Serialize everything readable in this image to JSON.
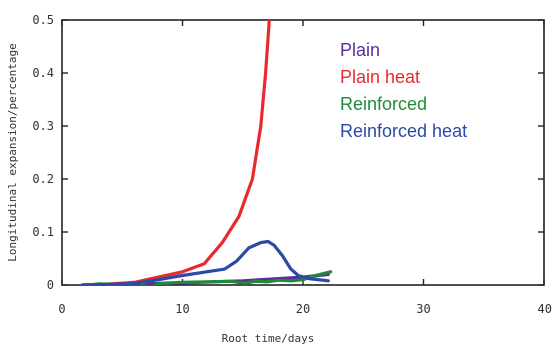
{
  "chart_data": {
    "type": "line",
    "xlabel": "Root time/days",
    "ylabel": "Longitudinal expansion/percentage",
    "xlim": [
      0,
      40
    ],
    "ylim": [
      0,
      0.5
    ],
    "x_ticks": [
      0,
      10,
      20,
      30,
      40
    ],
    "y_ticks": [
      0,
      0.1,
      0.2,
      0.3,
      0.4,
      0.5
    ],
    "x_tick_labels": [
      "0",
      "10",
      "20",
      "30",
      "40"
    ],
    "y_tick_labels": [
      "0",
      "0.1",
      "0.2",
      "0.3",
      "0.4",
      "0.5"
    ],
    "grid": false,
    "legend_position": "top-right",
    "series": [
      {
        "name": "Plain",
        "color": "#5a2d9c",
        "points": [
          [
            1.7,
            0
          ],
          [
            5,
            0.001
          ],
          [
            10,
            0.004
          ],
          [
            15,
            0.008
          ],
          [
            18,
            0.012
          ],
          [
            20,
            0.015
          ],
          [
            22.1,
            0.02
          ]
        ]
      },
      {
        "name": "Plain heat",
        "color": "#e8292d",
        "points": [
          [
            1.7,
            0
          ],
          [
            4,
            0.002
          ],
          [
            6,
            0.005
          ],
          [
            8,
            0.015
          ],
          [
            10,
            0.025
          ],
          [
            11.8,
            0.04
          ],
          [
            13.3,
            0.08
          ],
          [
            14.7,
            0.13
          ],
          [
            15.8,
            0.2
          ],
          [
            16.5,
            0.3
          ],
          [
            16.9,
            0.4
          ],
          [
            17.2,
            0.5
          ]
        ]
      },
      {
        "name": "Reinforced",
        "color": "#1f8a3a",
        "points": [
          [
            1.7,
            -0.002
          ],
          [
            3,
            0.002
          ],
          [
            5,
            0.001
          ],
          [
            6.5,
            0.005
          ],
          [
            7.2,
            -0.008
          ],
          [
            8,
            0.003
          ],
          [
            10,
            0.005
          ],
          [
            12,
            0.006
          ],
          [
            14,
            0.007
          ],
          [
            15.2,
            0.003
          ],
          [
            16,
            0.007
          ],
          [
            17,
            0.006
          ],
          [
            18,
            0.009
          ],
          [
            19,
            0.008
          ],
          [
            20,
            0.01
          ],
          [
            21,
            0.018
          ],
          [
            22.3,
            0.025
          ]
        ]
      },
      {
        "name": "Reinforced heat",
        "color": "#2a4aa8",
        "points": [
          [
            1.7,
            0
          ],
          [
            4,
            0.001
          ],
          [
            6,
            0.003
          ],
          [
            8,
            0.01
          ],
          [
            10,
            0.018
          ],
          [
            12,
            0.025
          ],
          [
            13.5,
            0.03
          ],
          [
            14.5,
            0.045
          ],
          [
            15.5,
            0.07
          ],
          [
            16.5,
            0.08
          ],
          [
            17.1,
            0.082
          ],
          [
            17.6,
            0.075
          ],
          [
            18.3,
            0.055
          ],
          [
            19,
            0.03
          ],
          [
            19.6,
            0.018
          ],
          [
            20.5,
            0.012
          ],
          [
            22.1,
            0.008
          ]
        ]
      }
    ]
  }
}
